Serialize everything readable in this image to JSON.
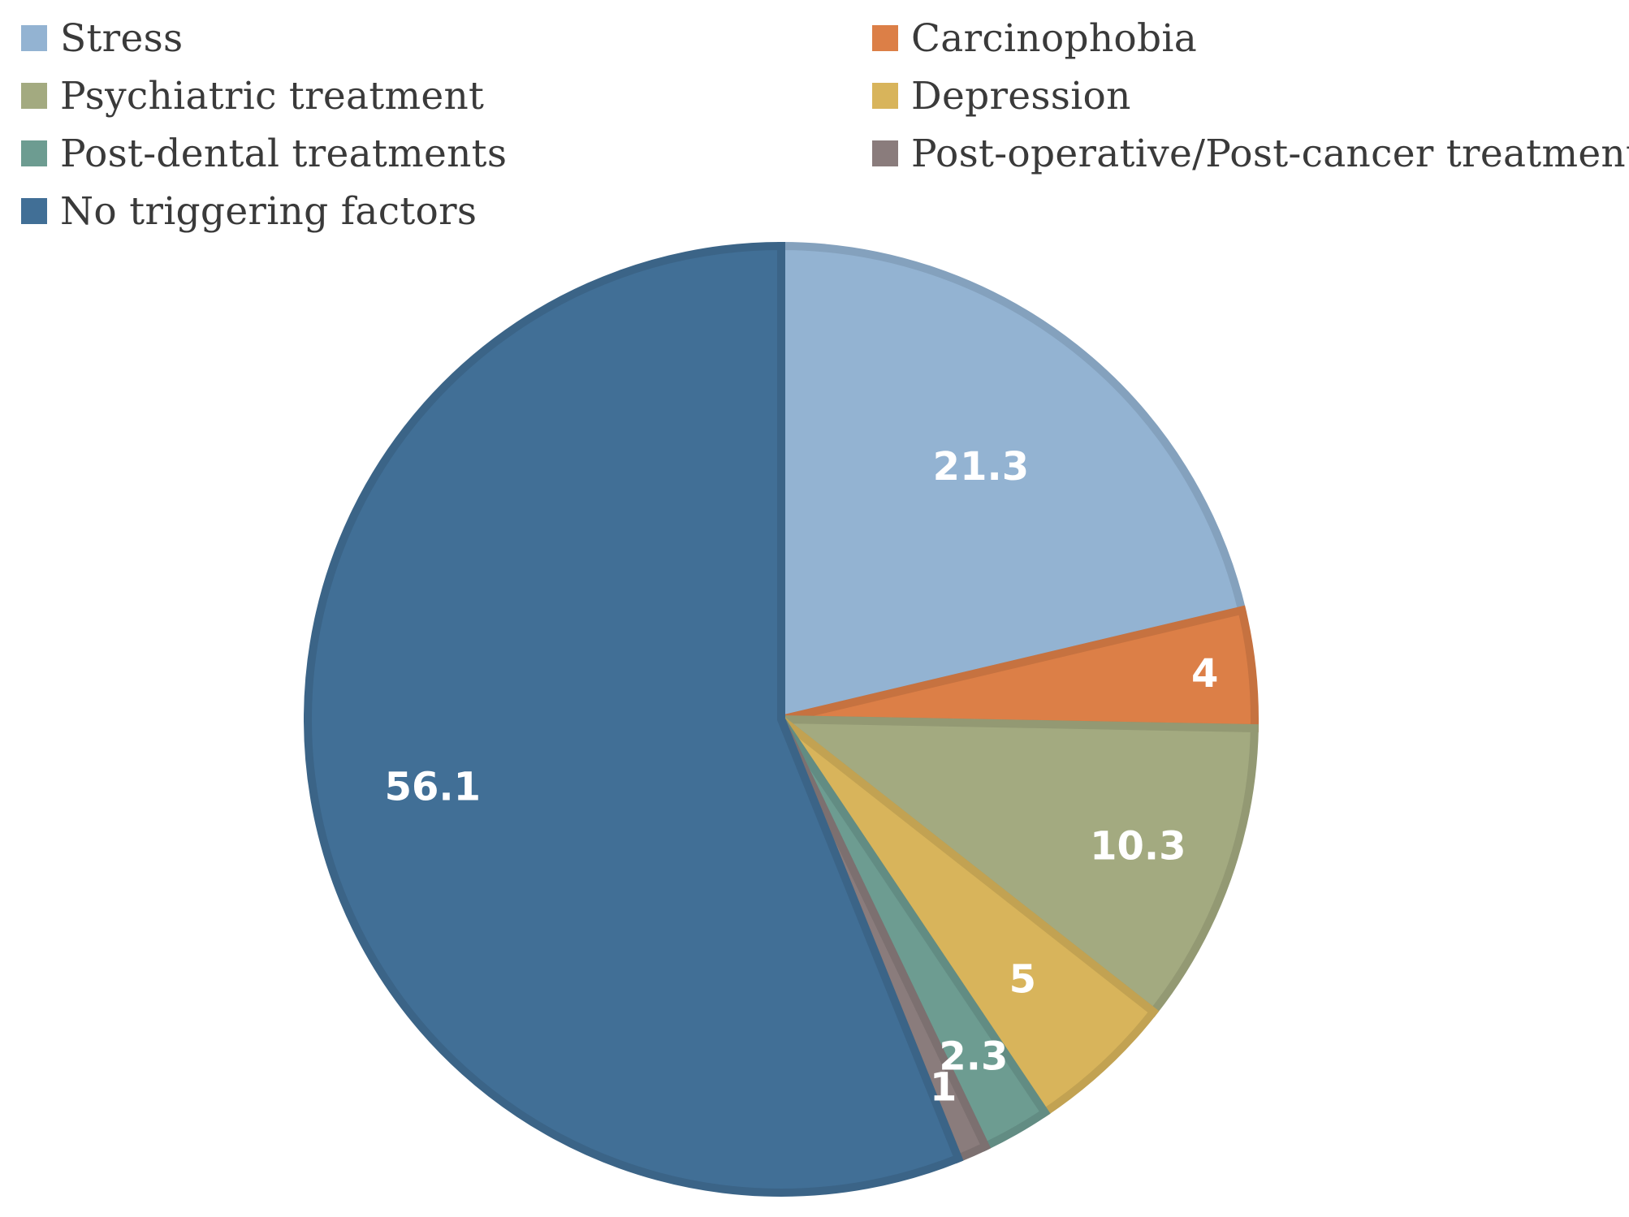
{
  "chart_data": {
    "type": "pie",
    "title": "",
    "start_angle_deg": 0,
    "direction": "clockwise",
    "legend_position": "top",
    "slices": [
      {
        "name": "Stress",
        "value": 21.3,
        "label": "21.3",
        "color": "#93b3d2"
      },
      {
        "name": "Carcinophobia",
        "value": 4,
        "label": "4",
        "color": "#dc7f47"
      },
      {
        "name": "Psychiatric treatment",
        "value": 10.3,
        "label": "10.3",
        "color": "#a3aa80"
      },
      {
        "name": "Depression",
        "value": 5,
        "label": "5",
        "color": "#d8b45b"
      },
      {
        "name": "Post-dental treatments",
        "value": 2.3,
        "label": "2.3",
        "color": "#6d9c91"
      },
      {
        "name": "Post-operative/Post-cancer treatment",
        "value": 1,
        "label": "1",
        "color": "#8a7c7c"
      },
      {
        "name": "No triggering factors",
        "value": 56.1,
        "label": "56.1",
        "color": "#416f96"
      }
    ]
  }
}
